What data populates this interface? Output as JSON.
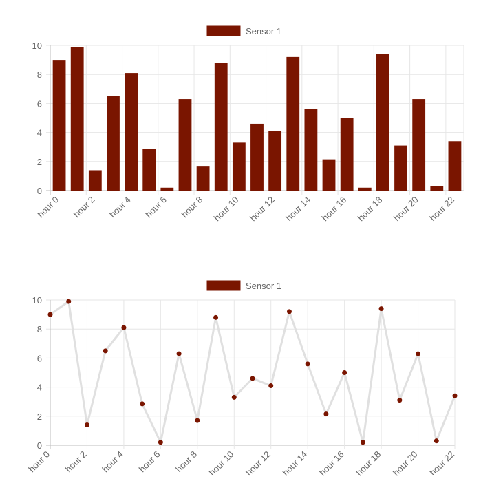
{
  "charts": [
    {
      "type": "bar",
      "legend_placement": "top",
      "legend": {
        "label": "Sensor 1",
        "color": "#7a1500"
      },
      "chart_data": {
        "type": "bar",
        "categories": [
          "hour 0",
          "hour 1",
          "hour 2",
          "hour 3",
          "hour 4",
          "hour 5",
          "hour 6",
          "hour 7",
          "hour 8",
          "hour 9",
          "hour 10",
          "hour 11",
          "hour 12",
          "hour 13",
          "hour 14",
          "hour 15",
          "hour 16",
          "hour 17",
          "hour 18",
          "hour 19",
          "hour 20",
          "hour 21",
          "hour 22"
        ],
        "series": [
          {
            "name": "Sensor 1",
            "color": "#7a1500",
            "values": [
              9.0,
              9.9,
              1.4,
              6.5,
              8.1,
              2.85,
              0.2,
              6.3,
              1.7,
              8.8,
              3.3,
              4.6,
              4.1,
              9.2,
              5.6,
              2.15,
              5.0,
              0.2,
              9.4,
              3.1,
              6.3,
              0.3,
              3.4
            ]
          }
        ],
        "yticks": [
          "0",
          "2",
          "4",
          "6",
          "8",
          "10"
        ],
        "xticks_shown": [
          "hour 0",
          "hour 2",
          "hour 4",
          "hour 6",
          "hour 8",
          "hour 10",
          "hour 12",
          "hour 14",
          "hour 16",
          "hour 18",
          "hour 20",
          "hour 22"
        ],
        "ylim": [
          0,
          10
        ],
        "grid": true
      }
    },
    {
      "type": "line",
      "legend_placement": "top",
      "legend": {
        "label": "Sensor 1",
        "color": "#7a1500"
      },
      "chart_data": {
        "type": "line",
        "categories": [
          "hour 0",
          "hour 1",
          "hour 2",
          "hour 3",
          "hour 4",
          "hour 5",
          "hour 6",
          "hour 7",
          "hour 8",
          "hour 9",
          "hour 10",
          "hour 11",
          "hour 12",
          "hour 13",
          "hour 14",
          "hour 15",
          "hour 16",
          "hour 17",
          "hour 18",
          "hour 19",
          "hour 20",
          "hour 21",
          "hour 22"
        ],
        "series": [
          {
            "name": "Sensor 1",
            "color": "#7a1500",
            "line_color": "#e0e0e0",
            "values": [
              9.0,
              9.9,
              1.4,
              6.5,
              8.1,
              2.85,
              0.2,
              6.3,
              1.7,
              8.8,
              3.3,
              4.6,
              4.1,
              9.2,
              5.6,
              2.15,
              5.0,
              0.2,
              9.4,
              3.1,
              6.3,
              0.3,
              3.4
            ]
          }
        ],
        "yticks": [
          "0",
          "2",
          "4",
          "6",
          "8",
          "10"
        ],
        "xticks_shown": [
          "hour 0",
          "hour 2",
          "hour 4",
          "hour 6",
          "hour 8",
          "hour 10",
          "hour 12",
          "hour 14",
          "hour 16",
          "hour 18",
          "hour 20",
          "hour 22"
        ],
        "ylim": [
          0,
          10
        ],
        "grid": true
      }
    }
  ]
}
